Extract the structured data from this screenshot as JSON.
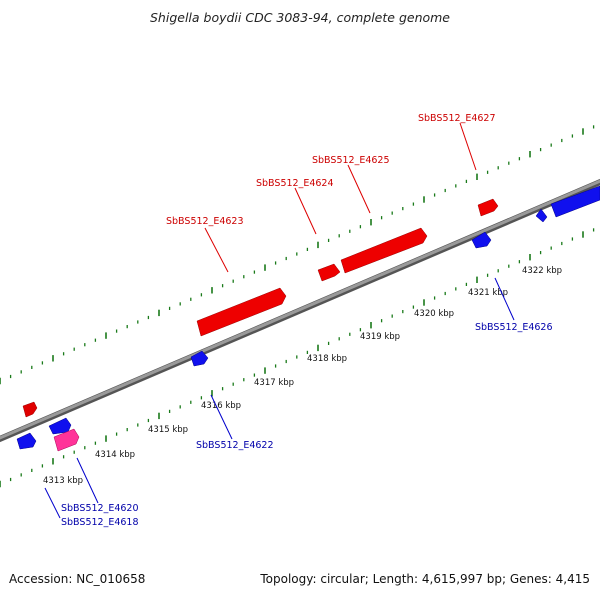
{
  "title": "Shigella boydii CDC 3083-94, complete genome",
  "footer": {
    "accession": "Accession: NC_010658",
    "summary": "Topology: circular; Length: 4,615,997 bp; Genes: 4,415"
  },
  "colors": {
    "forward": "#ff0000",
    "reverse": "#0000ee",
    "special": "#ff1493",
    "backbone": "#888888",
    "forward_label": "#cc0000",
    "reverse_label": "#0000aa",
    "tick": "#1a7a1a"
  },
  "tick_labels": [
    "4313 kbp",
    "4314 kbp",
    "4315 kbp",
    "4316 kbp",
    "4317 kbp",
    "4318 kbp",
    "4319 kbp",
    "4320 kbp",
    "4321 kbp",
    "4322 kbp"
  ],
  "genes_forward": [
    "SbBS512_E4623",
    "SbBS512_E4624",
    "SbBS512_E4625",
    "SbBS512_E4627"
  ],
  "genes_reverse": [
    "SbBS512_E4622",
    "SbBS512_E4626",
    "SbBS512_E4620",
    "SbBS512_E4618"
  ]
}
